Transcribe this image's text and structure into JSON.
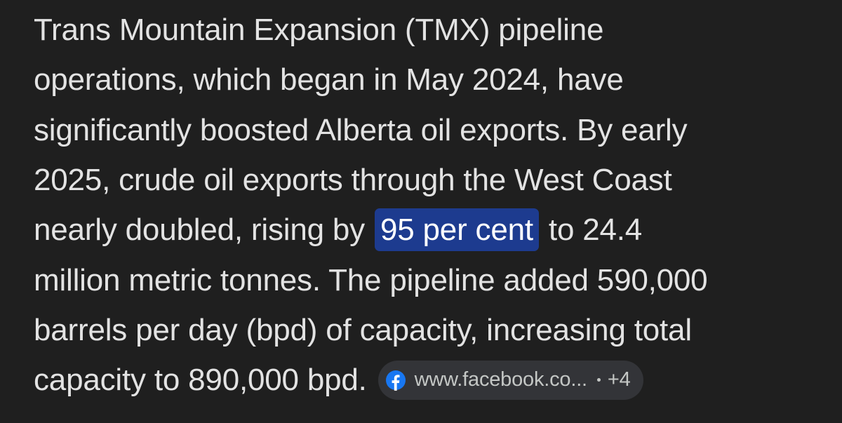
{
  "answer": {
    "lines_before": [
      "Trans Mountain Expansion (TMX) pipeline",
      "operations, which began in May 2024, have",
      "significantly boosted Alberta oil exports. By early",
      "2025, crude oil exports through the West Coast"
    ],
    "highlight_line": {
      "before": "nearly doubled, rising by",
      "highlight": "95 per cent",
      "after": "to 24.4"
    },
    "lines_after": [
      "million metric tonnes. The pipeline added 590,000",
      "barrels per day (bpd) of capacity, increasing total"
    ],
    "last_line": "capacity to 890,000 bpd.",
    "source": {
      "label": "www.facebook.co...",
      "more": "+4"
    }
  }
}
